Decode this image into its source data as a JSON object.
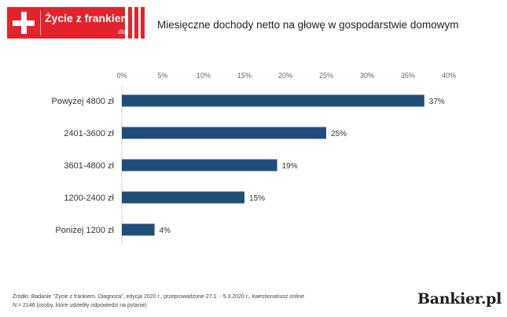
{
  "logo": {
    "brand": "Życie z frankiem",
    "sub": "diagnoza"
  },
  "colors": {
    "bar": "#1f4e79",
    "brand_red": "#e3232b"
  },
  "chart_data": {
    "type": "bar",
    "orientation": "horizontal",
    "title": "Miesięczne dochody netto na głowę w gospodarstwie domowym",
    "categories": [
      "Powyżej 4800 zł",
      "2401-3600 zł",
      "3601-4800 zł",
      "1200-2400 zł",
      "Poniżej 1200 zł"
    ],
    "values": [
      37,
      25,
      19,
      15,
      4
    ],
    "value_labels": [
      "37%",
      "25%",
      "19%",
      "15%",
      "4%"
    ],
    "xlim": [
      0,
      40
    ],
    "x_ticks": [
      "0%",
      "5%",
      "10%",
      "15%",
      "20%",
      "25%",
      "30%",
      "35%",
      "40%"
    ],
    "x_axis_position": "top",
    "grid": false
  },
  "footer": {
    "source_line1": "Źródło: Badanie \"Życie z frankiem. Diagnoza\", edycja 2020 r., przeprowadzone 27.1. - 5.3.2020 r., kwestionariusz online",
    "source_line2": "N = 2146  (osoby, które udzieliły odpowiedzi na pytanie)",
    "publisher": "Bankier.pl"
  }
}
